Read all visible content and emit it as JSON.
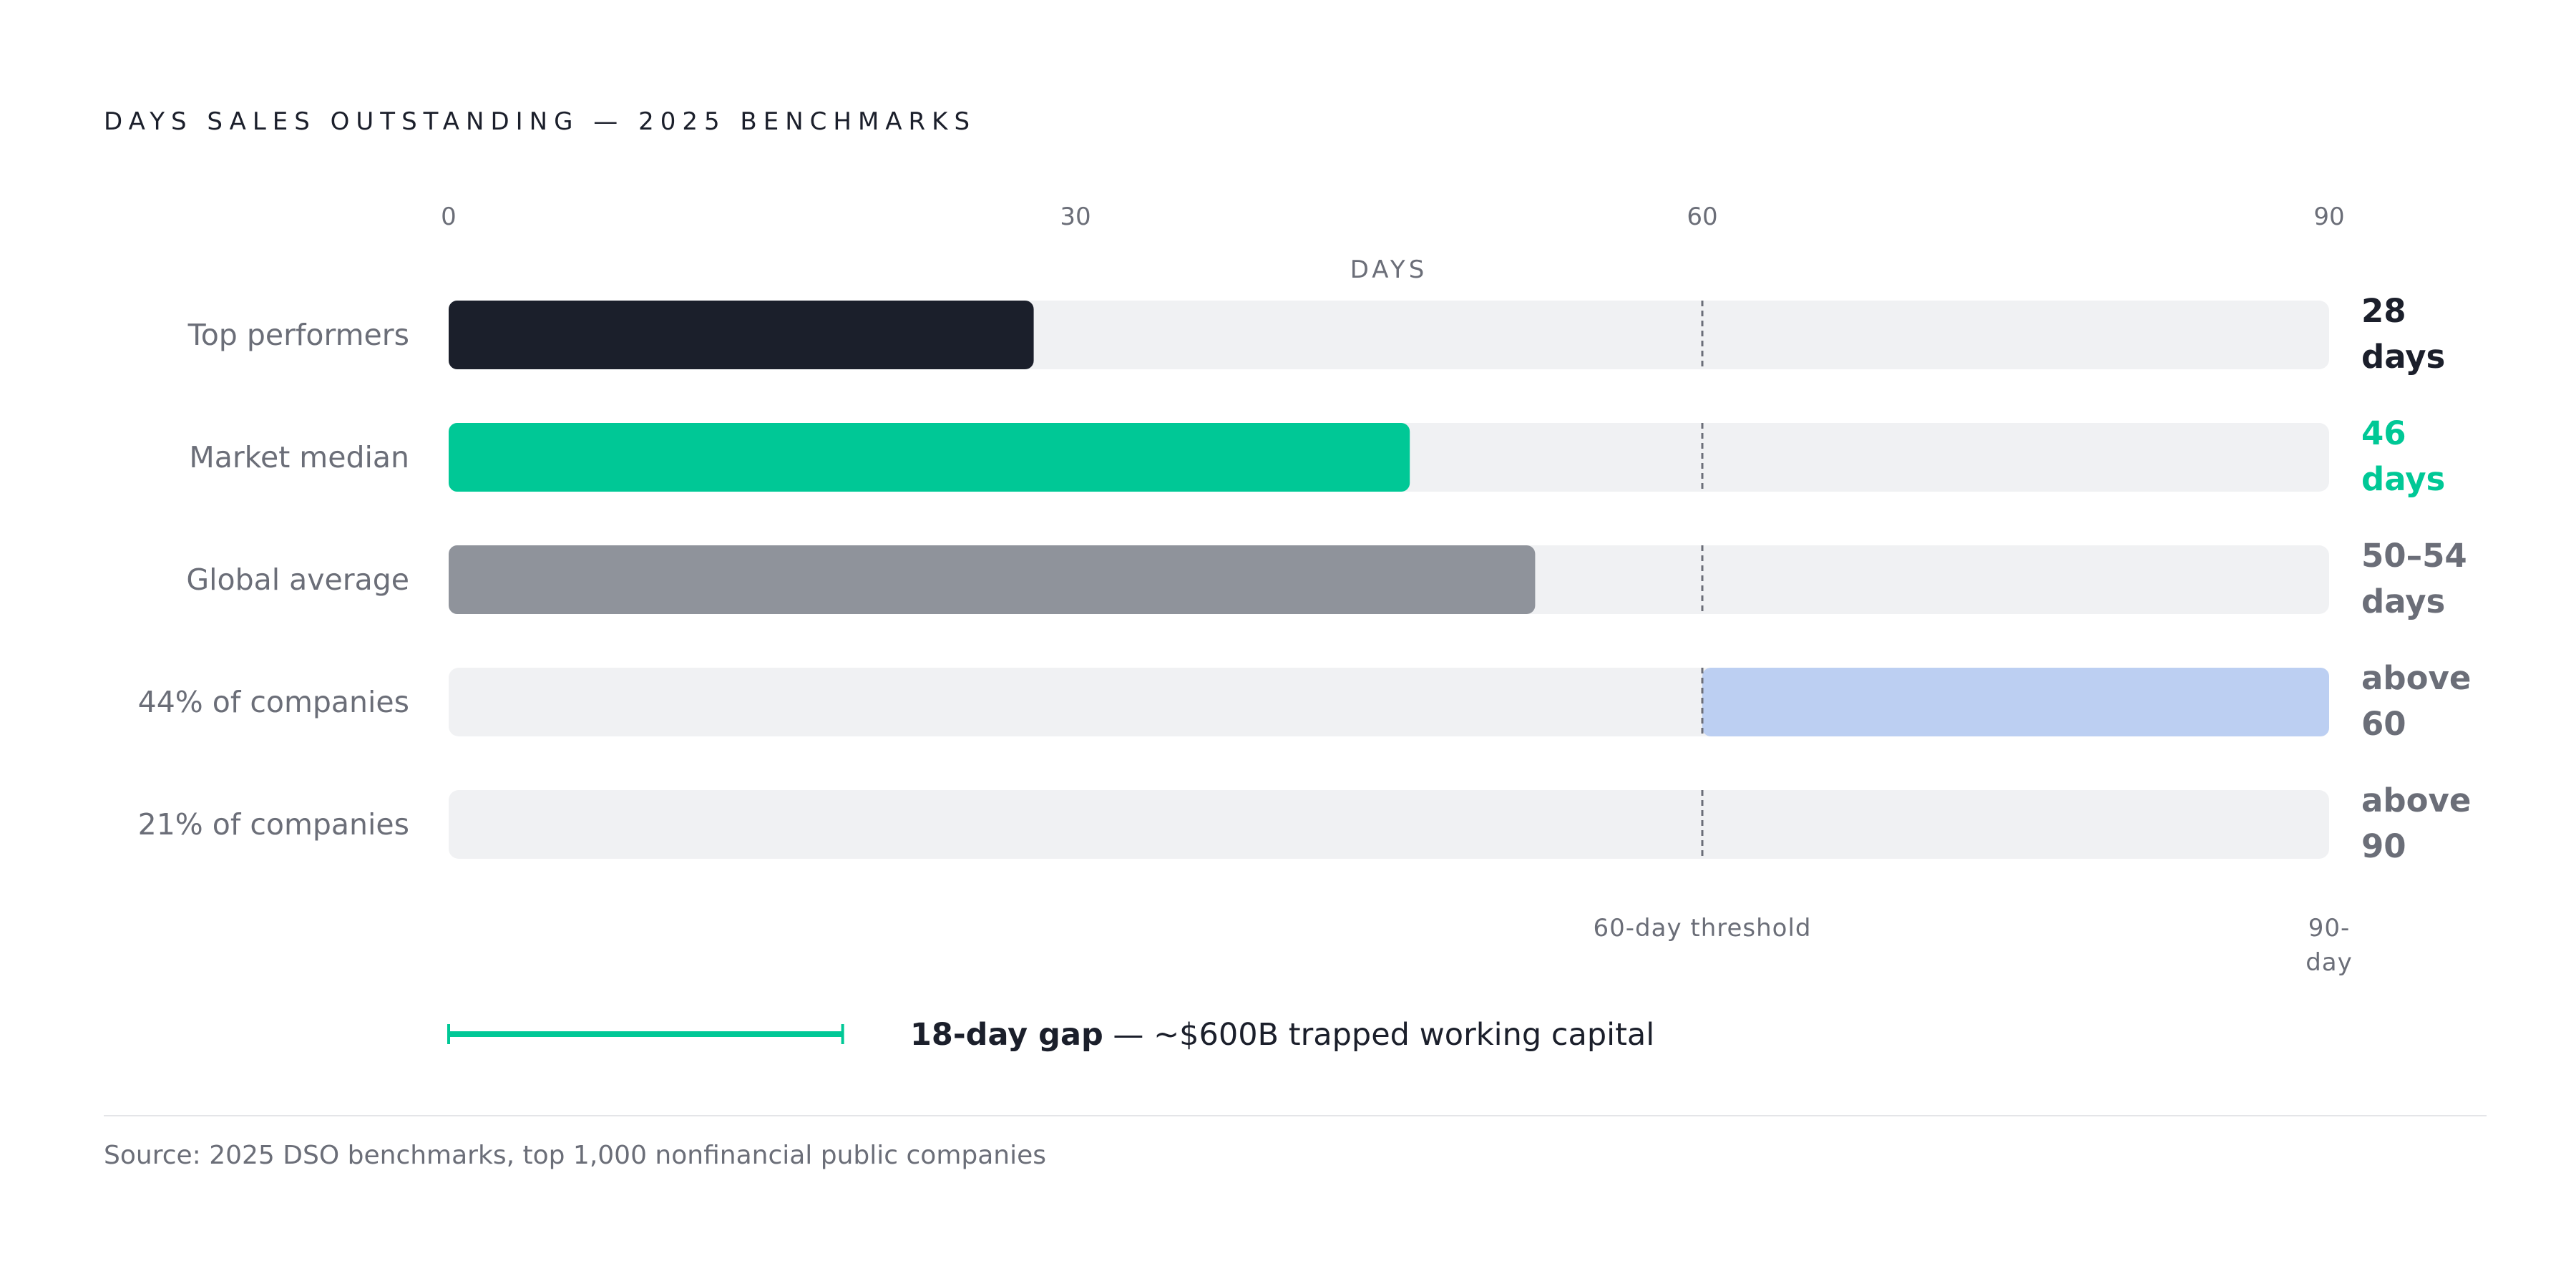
{
  "title": "DAYS SALES OUTSTANDING — 2025 BENCHMARKS",
  "source": "Source: 2025 DSO benchmarks, top 1,000 nonfinancial public companies",
  "colors": {
    "dark": "#1b1f2b",
    "green": "#00c896",
    "gray": "#8f939b",
    "blue": "#bccff2",
    "track": "#f0f1f3",
    "muted": "#6b6e78"
  },
  "chart_data": {
    "type": "bar",
    "orientation": "horizontal",
    "xlabel": "DAYS",
    "xlim": [
      0,
      90
    ],
    "x_ticks": [
      {
        "value": 0,
        "label": "0"
      },
      {
        "value": 30,
        "label": "30"
      },
      {
        "value": 60,
        "label": "60"
      },
      {
        "value": 90,
        "label": "90"
      }
    ],
    "bars": [
      {
        "label": "Top performers",
        "start": 0,
        "end": 28,
        "value_label": [
          "28",
          "days"
        ],
        "color": "#1b1f2b",
        "value_color": "#1b1f2b"
      },
      {
        "label": "Market median",
        "start": 0,
        "end": 46,
        "value_label": [
          "46",
          "days"
        ],
        "color": "#00c896",
        "value_color": "#00c896"
      },
      {
        "label": "Global average",
        "start": 0,
        "end": 52,
        "value_label": [
          "50–54",
          "days"
        ],
        "color": "#8f939b",
        "value_color": "#6b6e78"
      },
      {
        "label": "44% of companies",
        "start": 60,
        "end": 90,
        "value_label": [
          "above",
          "60"
        ],
        "color": "#bccff2",
        "value_color": "#6b6e78"
      },
      {
        "label": "21% of companies",
        "start": 90,
        "end": 90,
        "value_label": [
          "above",
          "90"
        ],
        "color": "#bccff2",
        "value_color": "#6b6e78"
      }
    ],
    "threshold": {
      "value": 60,
      "label": "60-day threshold"
    },
    "end_marker": {
      "value": 90,
      "label": [
        "90-",
        "day"
      ]
    },
    "gap_annotation": {
      "start": 0,
      "end": 18,
      "bold": "18-day gap",
      "text": " — ~$600B trapped working capital",
      "color": "#00c896"
    }
  }
}
